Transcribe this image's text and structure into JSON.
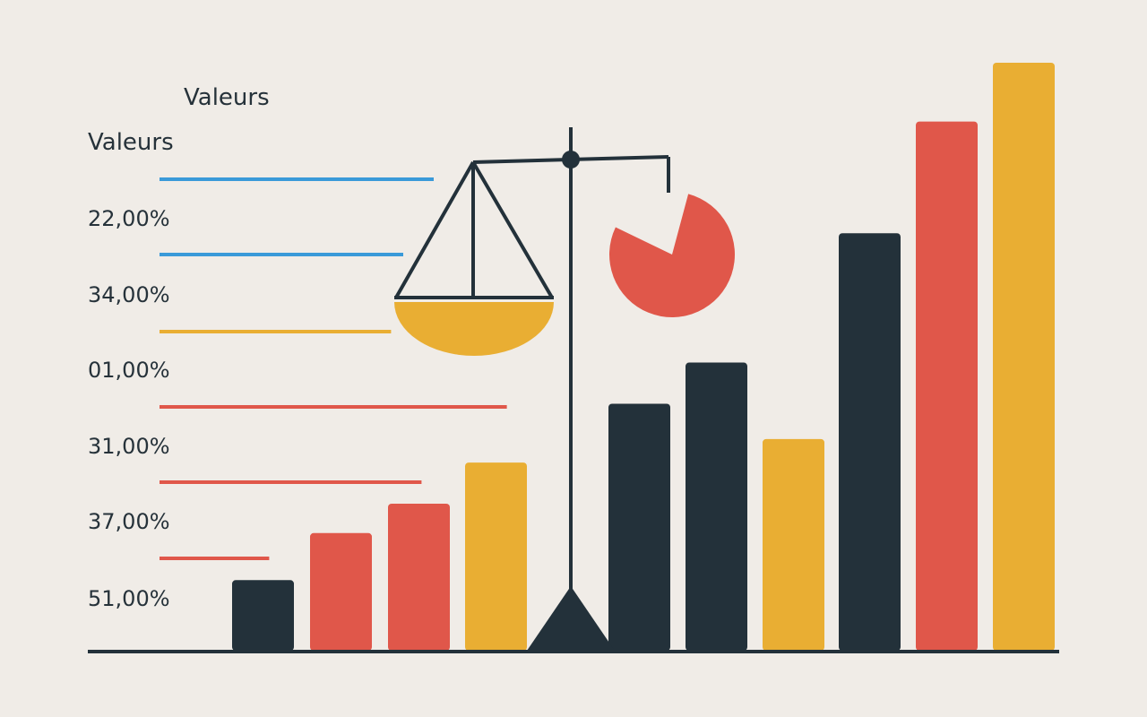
{
  "chart_data": {
    "type": "bar",
    "title": "Valeurs",
    "ylabel": "Valeurs",
    "row_labels": [
      "22,00%",
      "34,00%",
      "01,00%",
      "31,00%",
      "37,00%",
      "51,00%"
    ],
    "line_values": [
      0.45,
      0.4,
      0.38,
      0.57,
      0.43,
      0.18
    ],
    "bars": [
      {
        "value": 0.12,
        "color": "#23313a"
      },
      {
        "value": 0.2,
        "color": "#e0574a"
      },
      {
        "value": 0.25,
        "color": "#e0574a"
      },
      {
        "value": 0.32,
        "color": "#e9ae33"
      },
      {
        "value": 0.42,
        "color": "#23313a"
      },
      {
        "value": 0.49,
        "color": "#23313a"
      },
      {
        "value": 0.36,
        "color": "#e9ae33"
      },
      {
        "value": 0.71,
        "color": "#23313a"
      },
      {
        "value": 0.9,
        "color": "#e0574a"
      },
      {
        "value": 1.0,
        "color": "#e9ae33"
      }
    ],
    "pie": {
      "slice_fraction": 0.78,
      "color": "#e0574a"
    },
    "colors": {
      "dark": "#23313a",
      "red": "#e0574a",
      "yellow": "#e9ae33",
      "blue": "#3a9ad9",
      "background": "#f0ece7"
    },
    "line_colors": [
      "#3a9ad9",
      "#3a9ad9",
      "#e9ae33",
      "#e0574a",
      "#e0574a",
      "#e0574a"
    ]
  },
  "icons": {
    "scale": "balance-scale-icon"
  }
}
